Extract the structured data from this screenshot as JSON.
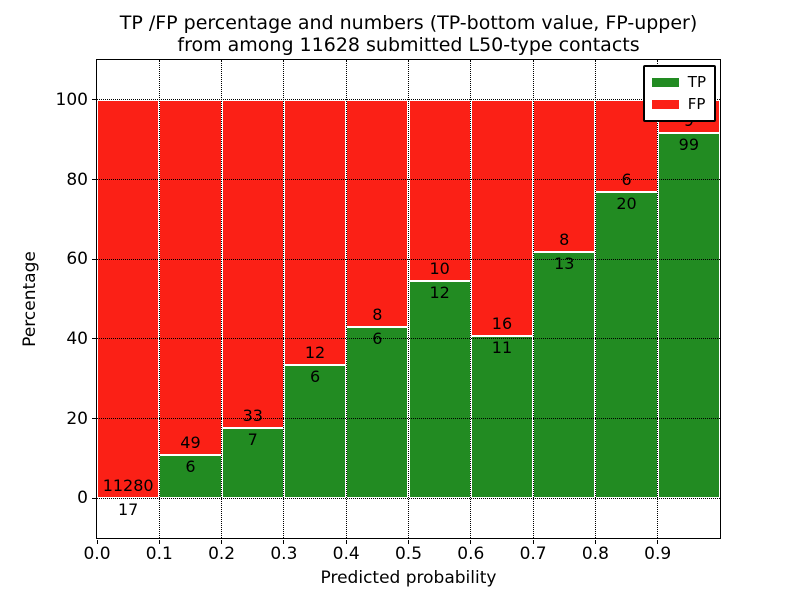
{
  "chart_data": {
    "type": "bar",
    "variant": "stacked-100-percent",
    "title_line1": "TP /FP percentage and numbers (TP-bottom value, FP-upper)",
    "title_line2": "from among 11628 submitted L50-type contacts",
    "xlabel": "Predicted probability",
    "ylabel": "Percentage",
    "total_submitted_contacts": 11628,
    "bins": [
      "0.0-0.1",
      "0.1-0.2",
      "0.2-0.3",
      "0.3-0.4",
      "0.4-0.5",
      "0.5-0.6",
      "0.6-0.7",
      "0.7-0.8",
      "0.8-0.9",
      "0.9-1.0"
    ],
    "series": [
      {
        "name": "TP",
        "color": "#228b22",
        "position": "bottom",
        "counts": [
          17,
          6,
          7,
          6,
          6,
          12,
          11,
          13,
          20,
          99
        ]
      },
      {
        "name": "FP",
        "color": "#fb2016",
        "position": "top",
        "counts": [
          11280,
          49,
          33,
          12,
          8,
          10,
          16,
          8,
          6,
          9
        ]
      }
    ],
    "tp_percent_of_bin": [
      0.15,
      10.91,
      17.5,
      33.33,
      42.86,
      54.55,
      40.74,
      61.9,
      76.92,
      91.67
    ],
    "x_tick_labels": [
      "0.0",
      "0.1",
      "0.2",
      "0.3",
      "0.4",
      "0.5",
      "0.6",
      "0.7",
      "0.8",
      "0.9"
    ],
    "y_tick_labels": [
      "0",
      "20",
      "40",
      "60",
      "80",
      "100"
    ],
    "y_tick_values": [
      0,
      20,
      40,
      60,
      80,
      100
    ],
    "xlim": [
      0.0,
      1.0
    ],
    "ylim": [
      -10,
      110
    ],
    "grid": "dotted black, drawn above bars",
    "bar_edge_color": "#ffffff",
    "legend": {
      "position": "upper-right",
      "entries": [
        "TP",
        "FP"
      ]
    }
  }
}
